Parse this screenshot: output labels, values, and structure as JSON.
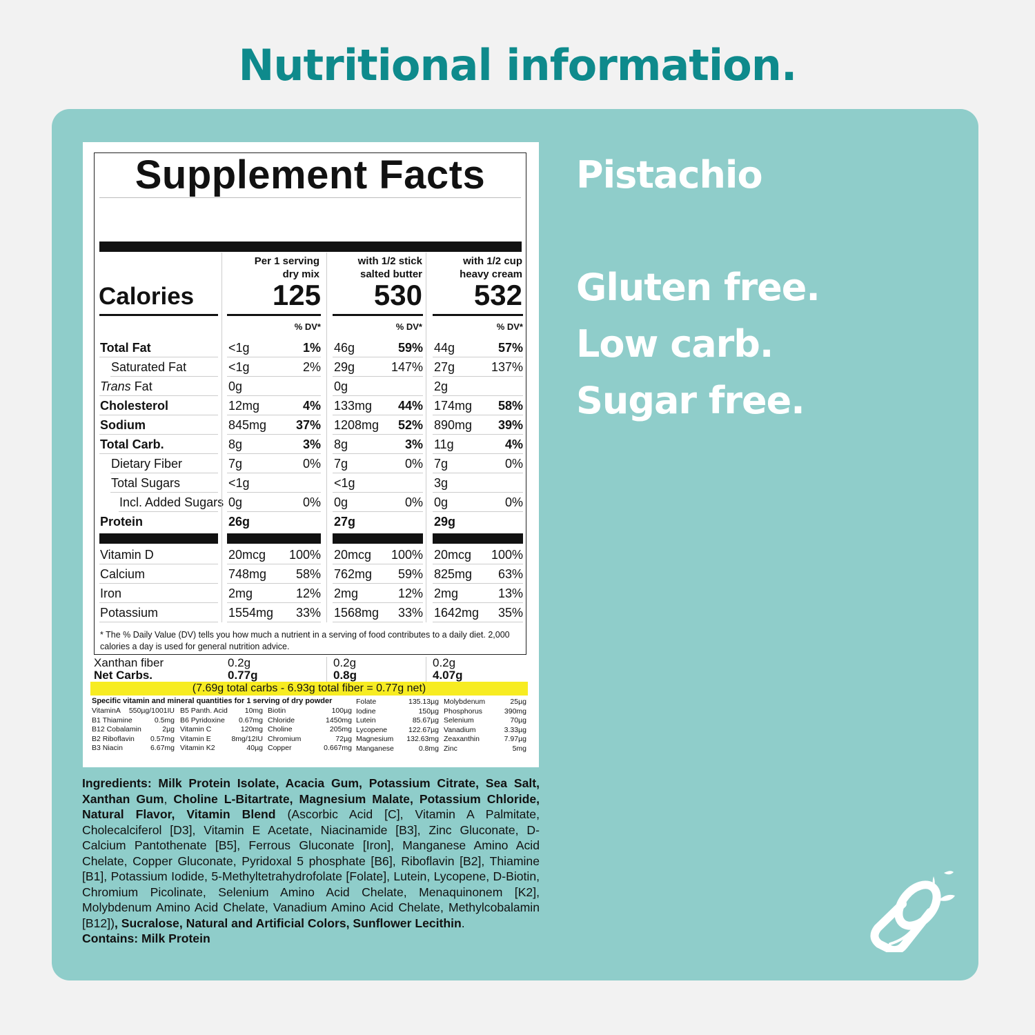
{
  "header": {
    "title": "Nutritional information."
  },
  "side": {
    "flavor": "Pistachio",
    "claims": [
      "Gluten free.",
      "Low carb.",
      "Sugar free."
    ],
    "icon": "splashing-glass-icon"
  },
  "facts": {
    "title": "Supplement Facts",
    "calories_label": "Calories",
    "dv_label": "% DV*",
    "columns": [
      {
        "line1": "Per 1 serving",
        "line2": "dry mix",
        "calories": "125"
      },
      {
        "line1": "with 1/2 stick",
        "line2": "salted butter",
        "calories": "530"
      },
      {
        "line1": "with 1/2 cup",
        "line2": "heavy cream",
        "calories": "532"
      }
    ],
    "rows": [
      {
        "name": "Total Fat",
        "vals": [
          [
            "<1g",
            "1%"
          ],
          [
            "46g",
            "59%"
          ],
          [
            "44g",
            "57%"
          ]
        ]
      },
      {
        "name": "Saturated Fat",
        "vals": [
          [
            "<1g",
            "2%"
          ],
          [
            "29g",
            "147%"
          ],
          [
            "27g",
            "137%"
          ]
        ]
      },
      {
        "name_italic": "Trans",
        "name": " Fat",
        "vals": [
          [
            "0g",
            ""
          ],
          [
            "0g",
            ""
          ],
          [
            "2g",
            ""
          ]
        ]
      },
      {
        "name": "Cholesterol",
        "vals": [
          [
            "12mg",
            "4%"
          ],
          [
            "133mg",
            "44%"
          ],
          [
            "174mg",
            "58%"
          ]
        ]
      },
      {
        "name": "Sodium",
        "vals": [
          [
            "845mg",
            "37%"
          ],
          [
            "1208mg",
            "52%"
          ],
          [
            "890mg",
            "39%"
          ]
        ]
      },
      {
        "name": "Total Carb.",
        "vals": [
          [
            "8g",
            "3%"
          ],
          [
            "8g",
            "3%"
          ],
          [
            "11g",
            "4%"
          ]
        ]
      },
      {
        "name": "Dietary Fiber",
        "vals": [
          [
            "7g",
            "0%"
          ],
          [
            "7g",
            "0%"
          ],
          [
            "7g",
            "0%"
          ]
        ]
      },
      {
        "name": "Total Sugars",
        "vals": [
          [
            "<1g",
            ""
          ],
          [
            "<1g",
            ""
          ],
          [
            "3g",
            ""
          ]
        ]
      },
      {
        "name": "Incl. Added Sugars",
        "vals": [
          [
            "0g",
            "0%"
          ],
          [
            "0g",
            "0%"
          ],
          [
            "0g",
            "0%"
          ]
        ]
      },
      {
        "name": "Protein",
        "vals": [
          [
            "26g",
            ""
          ],
          [
            "27g",
            ""
          ],
          [
            "29g",
            ""
          ]
        ]
      },
      {
        "name": "Vitamin D",
        "vals": [
          [
            "20mcg",
            "100%"
          ],
          [
            "20mcg",
            "100%"
          ],
          [
            "20mcg",
            "100%"
          ]
        ]
      },
      {
        "name": "Calcium",
        "vals": [
          [
            "748mg",
            "58%"
          ],
          [
            "762mg",
            "59%"
          ],
          [
            "825mg",
            "63%"
          ]
        ]
      },
      {
        "name": "Iron",
        "vals": [
          [
            "2mg",
            "12%"
          ],
          [
            "2mg",
            "12%"
          ],
          [
            "2mg",
            "13%"
          ]
        ]
      },
      {
        "name": "Potassium",
        "vals": [
          [
            "1554mg",
            "33%"
          ],
          [
            "1568mg",
            "33%"
          ],
          [
            "1642mg",
            "35%"
          ]
        ]
      }
    ],
    "footnote": "* The % Daily Value (DV) tells you how much a nutrient in a serving of food contributes to a daily diet. 2,000 calories a day is used for general nutrition advice.",
    "xanthan": {
      "label": "Xanthan fiber",
      "vals": [
        "0.2g",
        "0.2g",
        "0.2g"
      ]
    },
    "net_carbs": {
      "label": "Net Carbs.",
      "vals": [
        "0.77g",
        "0.8g",
        "4.07g"
      ]
    },
    "net_formula": "(7.69g total carbs - 6.93g total fiber = 0.77g net)",
    "micros_title": "Specific vitamin and mineral quantities for 1 serving of dry powder",
    "micros": [
      [
        [
          "VitaminA",
          "550µg/1001IU"
        ],
        [
          "B1 Thiamine",
          "0.5mg"
        ],
        [
          "B12 Cobalamin",
          "2µg"
        ],
        [
          "B2 Riboflavin",
          "0.57mg"
        ],
        [
          "B3 Niacin",
          "6.67mg"
        ]
      ],
      [
        [
          "B5 Panth. Acid",
          "10mg"
        ],
        [
          "B6 Pyridoxine",
          "0.67mg"
        ],
        [
          "Vitamin C",
          "120mg"
        ],
        [
          "Vitamin E",
          "8mg/12IU"
        ],
        [
          "Vitamin K2",
          "40µg"
        ]
      ],
      [
        [
          "Biotin",
          "100µg"
        ],
        [
          "Chloride",
          "1450mg"
        ],
        [
          "Choline",
          "205mg"
        ],
        [
          "Chromium",
          "72µg"
        ],
        [
          "Copper",
          "0.667mg"
        ]
      ],
      [
        [
          "Folate",
          "135.13µg"
        ],
        [
          "Iodine",
          "150µg"
        ],
        [
          "Lutein",
          "85.67µg"
        ],
        [
          "Lycopene",
          "122.67µg"
        ],
        [
          "Magnesium",
          "132.63mg"
        ],
        [
          "Manganese",
          "0.8mg"
        ]
      ],
      [
        [
          "Molybdenum",
          "25µg"
        ],
        [
          "Phosphorus",
          "390mg"
        ],
        [
          "Selenium",
          "70µg"
        ],
        [
          "Vanadium",
          "3.33µg"
        ],
        [
          "Zeaxanthin",
          "7.97µg"
        ],
        [
          "Zinc",
          "5mg"
        ]
      ]
    ]
  },
  "ingredients": {
    "segments": [
      {
        "b": true,
        "t": "Ingredients: Milk Protein Isolate, Acacia Gum, Potassium Citrate, Sea Salt, Xanthan Gum"
      },
      {
        "b": false,
        "t": ", "
      },
      {
        "b": true,
        "t": "Choline L-Bitartrate, Magnesium Malate, Potassium Chlo­ride, Natural Flavor, Vitamin Blend"
      },
      {
        "b": false,
        "t": " (Ascorbic Acid [C], Vitamin A Palmitate, Cholecalciferol [D3], Vitamin E Acetate, Niacinamide [B3], Zinc Gluconate, D-Calcium Pantothenate [B5], Ferrous Gluconate [Iron], Manganese Amino Acid Chelate, Copper Gluconate, Pyridoxal 5 phosphate [B6], Riboflavin [B2], Thia­mine [B1], Potassium Iodide, 5-Methyltetrahydrofolate [Folate], Lutein, Lyco­pene, D-Biotin, Chromium Picolinate, Selenium Amino Acid Chelate, Menaqui­nonem [K2], Molybdenum Amino Acid Chelate, Vanadium Amino Acid Chelate, Methylcobalamin [B12])"
      },
      {
        "b": true,
        "t": ", Sucralose, Natural and Artificial Colors, Sunflower Lecithin"
      },
      {
        "b": false,
        "t": "."
      }
    ],
    "contains": "Contains: Milk Protein"
  },
  "colors": {
    "title": "#0e8a8c",
    "panel": "#8fcdca",
    "highlight": "#f7ec22"
  }
}
